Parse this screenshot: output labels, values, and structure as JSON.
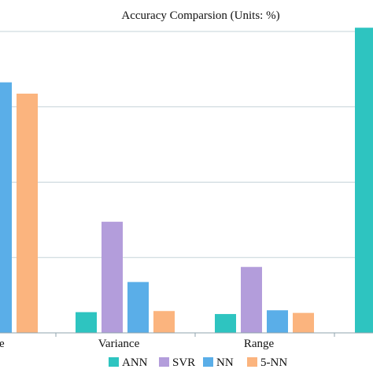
{
  "chart_data": {
    "type": "bar",
    "title": "Accuracy Comparsion (Units: %)",
    "categories": [
      "e",
      "Variance",
      "Range",
      ""
    ],
    "series": [
      {
        "name": "ANN",
        "color": "#2ec4c0",
        "values": [
          null,
          5.5,
          5,
          81
        ]
      },
      {
        "name": "SVR",
        "color": "#b39ddb",
        "values": [
          null,
          29.5,
          17.5,
          null
        ]
      },
      {
        "name": "NN",
        "color": "#5aaee8",
        "values": [
          66.5,
          13.5,
          6,
          null
        ]
      },
      {
        "name": "5-NN",
        "color": "#fbb47e",
        "values": [
          63.5,
          5.8,
          5.3,
          null
        ]
      }
    ],
    "ylim": [
      0,
      80
    ],
    "grid": true,
    "legend_position": "bottom-center"
  }
}
